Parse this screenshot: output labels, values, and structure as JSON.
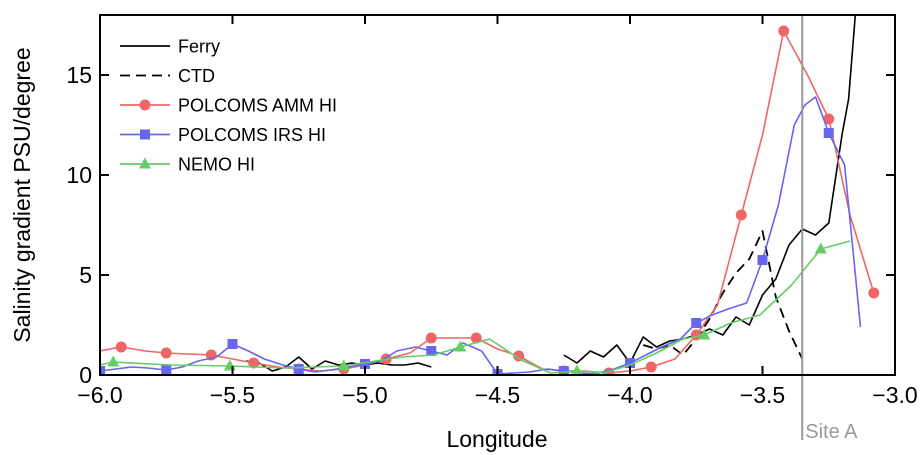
{
  "chart_data": {
    "type": "line",
    "xlabel": "Longitude",
    "ylabel": "Salinity gradient PSU/degree",
    "xlim": [
      -6.0,
      -3.0
    ],
    "ylim": [
      0,
      18
    ],
    "xticks": [
      -6.0,
      -5.5,
      -5.0,
      -4.5,
      -4.0,
      -3.5,
      -3.0
    ],
    "xtick_labels": [
      "−6.0",
      "−5.5",
      "−5.0",
      "−4.5",
      "−4.0",
      "−3.5",
      "−3.0"
    ],
    "yticks": [
      0,
      5,
      10,
      15
    ],
    "ytick_labels": [
      "0",
      "5",
      "10",
      "15"
    ],
    "grid": false,
    "legend_position": "top-left",
    "annotation": {
      "label": "Site A",
      "x": -3.35
    },
    "series": [
      {
        "name": "Ferry",
        "color": "#000000",
        "dash": "solid",
        "marker": "none",
        "segments": [
          [
            [
              -5.45,
              0.7
            ],
            [
              -5.4,
              0.6
            ],
            [
              -5.35,
              0.2
            ],
            [
              -5.3,
              0.4
            ],
            [
              -5.25,
              0.9
            ],
            [
              -5.2,
              0.3
            ],
            [
              -5.15,
              0.7
            ],
            [
              -5.1,
              0.5
            ],
            [
              -5.05,
              0.6
            ],
            [
              -5.0,
              0.5
            ],
            [
              -4.95,
              0.6
            ],
            [
              -4.9,
              0.5
            ],
            [
              -4.85,
              0.5
            ],
            [
              -4.8,
              0.6
            ],
            [
              -4.75,
              0.4
            ]
          ],
          [
            [
              -4.25,
              1.0
            ],
            [
              -4.2,
              0.6
            ],
            [
              -4.15,
              1.2
            ],
            [
              -4.1,
              0.9
            ],
            [
              -4.05,
              1.5
            ],
            [
              -4.0,
              0.6
            ],
            [
              -3.95,
              1.9
            ],
            [
              -3.9,
              1.4
            ],
            [
              -3.85,
              1.7
            ],
            [
              -3.8,
              1.8
            ],
            [
              -3.75,
              2.0
            ],
            [
              -3.7,
              2.3
            ],
            [
              -3.65,
              2.0
            ],
            [
              -3.6,
              2.9
            ],
            [
              -3.55,
              2.5
            ],
            [
              -3.5,
              4.0
            ],
            [
              -3.45,
              4.8
            ],
            [
              -3.4,
              6.5
            ],
            [
              -3.35,
              7.3
            ],
            [
              -3.3,
              7.0
            ],
            [
              -3.25,
              7.6
            ],
            [
              -3.2,
              12.0
            ],
            [
              -3.175,
              13.8
            ],
            [
              -3.15,
              18.0
            ]
          ]
        ]
      },
      {
        "name": "CTD",
        "color": "#000000",
        "dash": "dashed",
        "marker": "none",
        "segments": [
          [
            [
              -3.95,
              1.5
            ],
            [
              -3.9,
              1.3
            ],
            [
              -3.85,
              1.5
            ],
            [
              -3.8,
              1.0
            ],
            [
              -3.75,
              1.8
            ],
            [
              -3.7,
              2.8
            ],
            [
              -3.65,
              4.1
            ],
            [
              -3.6,
              5.1
            ],
            [
              -3.55,
              5.8
            ],
            [
              -3.5,
              7.2
            ],
            [
              -3.45,
              3.9
            ],
            [
              -3.4,
              2.2
            ],
            [
              -3.35,
              0.8
            ]
          ]
        ]
      },
      {
        "name": "POLCOMS AMM HI",
        "color": "#ee6666",
        "dash": "solid",
        "marker": "circle",
        "segments": [
          [
            [
              -6.0,
              1.2
            ],
            [
              -5.92,
              1.4
            ],
            [
              -5.83,
              1.2
            ],
            [
              -5.75,
              1.1
            ],
            [
              -5.67,
              1.05
            ],
            [
              -5.58,
              1.0
            ],
            [
              -5.5,
              0.8
            ],
            [
              -5.42,
              0.6
            ],
            [
              -5.33,
              0.4
            ],
            [
              -5.25,
              0.3
            ],
            [
              -5.17,
              0.2
            ],
            [
              -5.08,
              0.3
            ],
            [
              -5.0,
              0.5
            ],
            [
              -4.92,
              0.8
            ],
            [
              -4.83,
              1.1
            ],
            [
              -4.75,
              1.85
            ],
            [
              -4.67,
              1.85
            ],
            [
              -4.58,
              1.85
            ],
            [
              -4.5,
              1.3
            ],
            [
              -4.42,
              0.95
            ],
            [
              -4.33,
              0.3
            ],
            [
              -4.25,
              0.2
            ],
            [
              -4.17,
              0.2
            ],
            [
              -4.08,
              0.1
            ],
            [
              -4.0,
              0.2
            ],
            [
              -3.92,
              0.4
            ],
            [
              -3.83,
              0.8
            ],
            [
              -3.75,
              2.0
            ],
            [
              -3.67,
              3.5
            ],
            [
              -3.58,
              8.0
            ],
            [
              -3.5,
              12.0
            ],
            [
              -3.42,
              17.2
            ],
            [
              -3.33,
              15.0
            ],
            [
              -3.25,
              12.8
            ],
            [
              -3.17,
              8.0
            ],
            [
              -3.08,
              4.1
            ]
          ]
        ],
        "markers": [
          [
            -5.92,
            1.4
          ],
          [
            -5.75,
            1.1
          ],
          [
            -5.58,
            1.0
          ],
          [
            -5.42,
            0.6
          ],
          [
            -5.25,
            0.3
          ],
          [
            -5.08,
            0.3
          ],
          [
            -4.92,
            0.8
          ],
          [
            -4.75,
            1.85
          ],
          [
            -4.58,
            1.85
          ],
          [
            -4.42,
            0.95
          ],
          [
            -4.25,
            0.2
          ],
          [
            -4.08,
            0.1
          ],
          [
            -3.92,
            0.4
          ],
          [
            -3.75,
            2.0
          ],
          [
            -3.58,
            8.0
          ],
          [
            -3.42,
            17.2
          ],
          [
            -3.25,
            12.8
          ],
          [
            -3.08,
            4.1
          ]
        ]
      },
      {
        "name": "POLCOMS IRS HI",
        "color": "#6666ee",
        "dash": "solid",
        "marker": "square",
        "segments": [
          [
            [
              -6.0,
              0.2
            ],
            [
              -5.94,
              0.3
            ],
            [
              -5.88,
              0.4
            ],
            [
              -5.82,
              0.35
            ],
            [
              -5.75,
              0.25
            ],
            [
              -5.69,
              0.4
            ],
            [
              -5.63,
              0.7
            ],
            [
              -5.56,
              0.9
            ],
            [
              -5.5,
              1.55
            ],
            [
              -5.44,
              1.2
            ],
            [
              -5.38,
              0.8
            ],
            [
              -5.31,
              0.5
            ],
            [
              -5.25,
              0.3
            ],
            [
              -5.19,
              0.15
            ],
            [
              -5.13,
              0.25
            ],
            [
              -5.06,
              0.4
            ],
            [
              -5.0,
              0.55
            ],
            [
              -4.94,
              0.7
            ],
            [
              -4.88,
              1.2
            ],
            [
              -4.81,
              1.4
            ],
            [
              -4.75,
              1.2
            ],
            [
              -4.69,
              1.0
            ],
            [
              -4.63,
              1.6
            ],
            [
              -4.56,
              1.2
            ],
            [
              -4.5,
              0.05
            ],
            [
              -4.44,
              0.1
            ],
            [
              -4.38,
              0.15
            ],
            [
              -4.31,
              0.3
            ],
            [
              -4.25,
              0.2
            ],
            [
              -4.19,
              0.1
            ],
            [
              -4.13,
              0.05
            ],
            [
              -4.06,
              0.3
            ],
            [
              -4.0,
              0.6
            ],
            [
              -3.94,
              1.0
            ],
            [
              -3.88,
              1.4
            ],
            [
              -3.81,
              1.8
            ],
            [
              -3.75,
              2.6
            ],
            [
              -3.69,
              3.0
            ],
            [
              -3.63,
              3.3
            ],
            [
              -3.56,
              3.6
            ],
            [
              -3.5,
              5.75
            ],
            [
              -3.44,
              8.5
            ],
            [
              -3.38,
              12.5
            ],
            [
              -3.34,
              13.5
            ],
            [
              -3.3,
              13.9
            ],
            [
              -3.25,
              12.1
            ],
            [
              -3.19,
              10.5
            ],
            [
              -3.13,
              2.4
            ]
          ]
        ],
        "markers": [
          [
            -6.0,
            0.2
          ],
          [
            -5.75,
            0.25
          ],
          [
            -5.5,
            1.55
          ],
          [
            -5.25,
            0.3
          ],
          [
            -5.0,
            0.55
          ],
          [
            -4.75,
            1.2
          ],
          [
            -4.5,
            0.05
          ],
          [
            -4.25,
            0.2
          ],
          [
            -4.0,
            0.6
          ],
          [
            -3.75,
            2.6
          ],
          [
            -3.5,
            5.75
          ],
          [
            -3.25,
            12.1
          ]
        ]
      },
      {
        "name": "NEMO HI",
        "color": "#66cc66",
        "dash": "solid",
        "marker": "triangle",
        "segments": [
          [
            [
              -6.0,
              0.5
            ],
            [
              -5.95,
              0.65
            ],
            [
              -5.73,
              0.5
            ],
            [
              -5.51,
              0.45
            ],
            [
              -5.3,
              0.35
            ],
            [
              -5.08,
              0.45
            ],
            [
              -4.96,
              0.7
            ],
            [
              -4.86,
              0.9
            ],
            [
              -4.74,
              1.0
            ],
            [
              -4.64,
              1.4
            ],
            [
              -4.53,
              1.8
            ],
            [
              -4.41,
              0.75
            ],
            [
              -4.3,
              0.1
            ],
            [
              -4.2,
              0.2
            ],
            [
              -4.1,
              0.1
            ],
            [
              -4.0,
              0.5
            ],
            [
              -3.9,
              1.1
            ],
            [
              -3.8,
              1.8
            ],
            [
              -3.72,
              2.0
            ],
            [
              -3.62,
              2.6
            ],
            [
              -3.51,
              3.0
            ],
            [
              -3.39,
              4.5
            ],
            [
              -3.28,
              6.3
            ],
            [
              -3.17,
              6.7
            ]
          ]
        ],
        "markers": [
          [
            -5.95,
            0.65
          ],
          [
            -5.51,
            0.45
          ],
          [
            -5.08,
            0.45
          ],
          [
            -4.64,
            1.4
          ],
          [
            -4.2,
            0.2
          ],
          [
            -3.72,
            2.0
          ],
          [
            -3.28,
            6.3
          ]
        ]
      }
    ]
  }
}
